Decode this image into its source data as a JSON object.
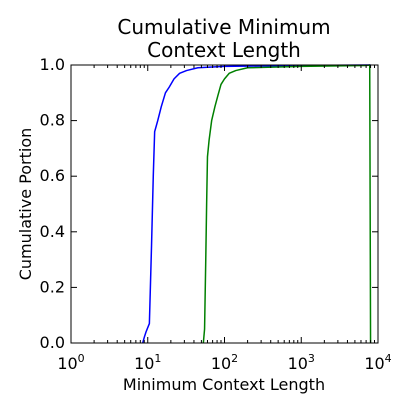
{
  "chart_data": {
    "type": "line",
    "title": [
      "Cumulative Minimum",
      "Context Length"
    ],
    "xlabel": "Minimum Context Length",
    "ylabel": "Cumulative Portion",
    "xscale": "log",
    "xlim": [
      1,
      10000
    ],
    "ylim": [
      0.0,
      1.0
    ],
    "grid": false,
    "x_ticks": [
      {
        "value": 1,
        "base": "10",
        "exp": "0"
      },
      {
        "value": 10,
        "base": "10",
        "exp": "1"
      },
      {
        "value": 100,
        "base": "10",
        "exp": "2"
      },
      {
        "value": 1000,
        "base": "10",
        "exp": "3"
      },
      {
        "value": 10000,
        "base": "10",
        "exp": "4"
      }
    ],
    "y_ticks": [
      "0.0",
      "0.2",
      "0.4",
      "0.6",
      "0.8",
      "1.0"
    ],
    "series": [
      {
        "color": "#0000ff",
        "points": [
          [
            8.6,
            0.0
          ],
          [
            9.0,
            0.02
          ],
          [
            9.5,
            0.04
          ],
          [
            10.5,
            0.07
          ],
          [
            11.2,
            0.35
          ],
          [
            11.8,
            0.6
          ],
          [
            12.3,
            0.76
          ],
          [
            13.5,
            0.8
          ],
          [
            15.0,
            0.85
          ],
          [
            17.0,
            0.9
          ],
          [
            19.0,
            0.92
          ],
          [
            22.0,
            0.95
          ],
          [
            26.0,
            0.97
          ],
          [
            32.0,
            0.98
          ],
          [
            45.0,
            0.99
          ],
          [
            100.0,
            0.995
          ],
          [
            1000.0,
            0.998
          ],
          [
            8000.0,
            1.0
          ]
        ]
      },
      {
        "color": "#008000",
        "points": [
          [
            53.0,
            0.0
          ],
          [
            55.0,
            0.05
          ],
          [
            57.0,
            0.3
          ],
          [
            58.5,
            0.5
          ],
          [
            60.0,
            0.67
          ],
          [
            63.0,
            0.73
          ],
          [
            68.0,
            0.8
          ],
          [
            75.0,
            0.85
          ],
          [
            82.0,
            0.89
          ],
          [
            90.0,
            0.93
          ],
          [
            100.0,
            0.95
          ],
          [
            115.0,
            0.97
          ],
          [
            140.0,
            0.98
          ],
          [
            200.0,
            0.99
          ],
          [
            1000.0,
            0.995
          ],
          [
            7000.0,
            0.998
          ],
          [
            7800.0,
            1.0
          ],
          [
            7900.0,
            0.5
          ],
          [
            8000.0,
            0.0
          ]
        ]
      }
    ]
  }
}
